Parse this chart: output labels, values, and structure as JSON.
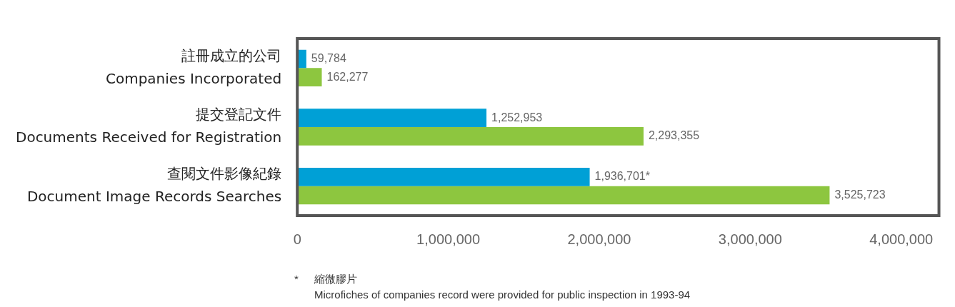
{
  "chart_data": {
    "type": "bar",
    "orientation": "horizontal",
    "categories": [
      "註冊成立的公司\nCompanies Incorporated",
      "提交登記文件\nDocuments Received for Registration",
      "查閱文件影像紀錄\nDocument Image Records Searches"
    ],
    "series": [
      {
        "color": "#00a0d6",
        "values": [
          59784,
          1252953,
          1936701
        ],
        "value_labels": [
          "59,784",
          "1,252,953",
          "1,936,701*"
        ]
      },
      {
        "color": "#8dc63f",
        "values": [
          162277,
          2293355,
          3525723
        ],
        "value_labels": [
          "162,277",
          "2,293,355",
          "3,525,723"
        ]
      }
    ],
    "xlim": [
      0,
      4250000
    ],
    "xticks": [
      {
        "value": 0,
        "label": "0"
      },
      {
        "value": 1000000,
        "label": "1,000,000"
      },
      {
        "value": 2000000,
        "label": "2,000,000"
      },
      {
        "value": 3000000,
        "label": "3,000,000"
      },
      {
        "value": 4000000,
        "label": "4,000,000"
      }
    ],
    "grid": false,
    "legend": false,
    "annotations": [
      "*",
      "縮微膠片",
      "Microfiches of companies record were provided for public inspection in 1993-94"
    ]
  }
}
